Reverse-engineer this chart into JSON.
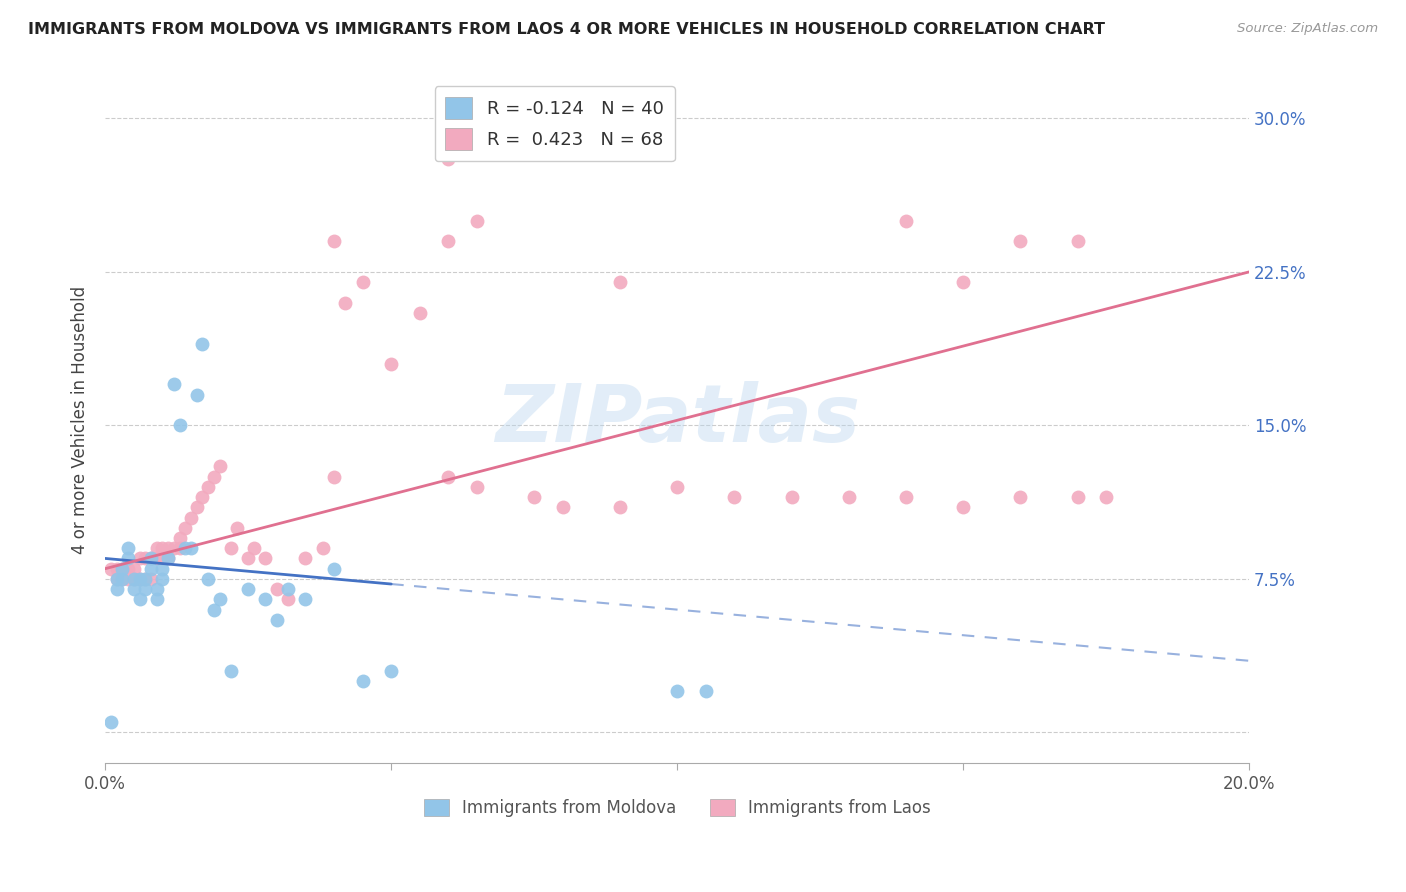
{
  "title": "IMMIGRANTS FROM MOLDOVA VS IMMIGRANTS FROM LAOS 4 OR MORE VEHICLES IN HOUSEHOLD CORRELATION CHART",
  "source": "Source: ZipAtlas.com",
  "ylabel": "4 or more Vehicles in Household",
  "xlim": [
    0.0,
    0.2
  ],
  "ylim": [
    -0.015,
    0.32
  ],
  "yticks": [
    0.0,
    0.075,
    0.15,
    0.225,
    0.3
  ],
  "xticks": [
    0.0,
    0.05,
    0.1,
    0.15,
    0.2
  ],
  "xtick_labels": [
    "0.0%",
    "",
    "",
    "",
    "20.0%"
  ],
  "moldova_R": -0.124,
  "moldova_N": 40,
  "laos_R": 0.423,
  "laos_N": 68,
  "moldova_color": "#92C5E8",
  "laos_color": "#F2AABF",
  "moldova_line_color": "#4472C4",
  "laos_line_color": "#E07090",
  "watermark": "ZIPatlas",
  "moldova_scatter_x": [
    0.001,
    0.002,
    0.002,
    0.003,
    0.003,
    0.004,
    0.004,
    0.005,
    0.005,
    0.006,
    0.006,
    0.007,
    0.007,
    0.008,
    0.008,
    0.009,
    0.009,
    0.01,
    0.01,
    0.011,
    0.012,
    0.013,
    0.014,
    0.015,
    0.016,
    0.017,
    0.018,
    0.019,
    0.02,
    0.022,
    0.025,
    0.028,
    0.03,
    0.032,
    0.035,
    0.04,
    0.045,
    0.05,
    0.1,
    0.105
  ],
  "moldova_scatter_y": [
    0.005,
    0.07,
    0.075,
    0.075,
    0.08,
    0.085,
    0.09,
    0.07,
    0.075,
    0.065,
    0.075,
    0.07,
    0.075,
    0.08,
    0.085,
    0.065,
    0.07,
    0.075,
    0.08,
    0.085,
    0.17,
    0.15,
    0.09,
    0.09,
    0.165,
    0.19,
    0.075,
    0.06,
    0.065,
    0.03,
    0.07,
    0.065,
    0.055,
    0.07,
    0.065,
    0.08,
    0.025,
    0.03,
    0.02,
    0.02
  ],
  "laos_scatter_x": [
    0.001,
    0.002,
    0.002,
    0.003,
    0.003,
    0.004,
    0.004,
    0.005,
    0.005,
    0.006,
    0.006,
    0.007,
    0.007,
    0.008,
    0.008,
    0.009,
    0.009,
    0.01,
    0.01,
    0.011,
    0.011,
    0.012,
    0.013,
    0.013,
    0.014,
    0.015,
    0.016,
    0.017,
    0.018,
    0.019,
    0.02,
    0.022,
    0.023,
    0.025,
    0.026,
    0.028,
    0.03,
    0.032,
    0.035,
    0.038,
    0.04,
    0.042,
    0.05,
    0.055,
    0.06,
    0.065,
    0.075,
    0.08,
    0.09,
    0.1,
    0.11,
    0.12,
    0.13,
    0.14,
    0.15,
    0.16,
    0.17,
    0.175,
    0.06,
    0.065,
    0.04,
    0.045,
    0.15,
    0.16,
    0.14,
    0.17,
    0.06,
    0.09
  ],
  "laos_scatter_y": [
    0.08,
    0.075,
    0.08,
    0.075,
    0.08,
    0.075,
    0.08,
    0.075,
    0.08,
    0.075,
    0.085,
    0.075,
    0.085,
    0.075,
    0.085,
    0.085,
    0.09,
    0.085,
    0.09,
    0.085,
    0.09,
    0.09,
    0.09,
    0.095,
    0.1,
    0.105,
    0.11,
    0.115,
    0.12,
    0.125,
    0.13,
    0.09,
    0.1,
    0.085,
    0.09,
    0.085,
    0.07,
    0.065,
    0.085,
    0.09,
    0.125,
    0.21,
    0.18,
    0.205,
    0.125,
    0.12,
    0.115,
    0.11,
    0.11,
    0.12,
    0.115,
    0.115,
    0.115,
    0.115,
    0.11,
    0.115,
    0.115,
    0.115,
    0.24,
    0.25,
    0.24,
    0.22,
    0.22,
    0.24,
    0.25,
    0.24,
    0.28,
    0.22
  ]
}
